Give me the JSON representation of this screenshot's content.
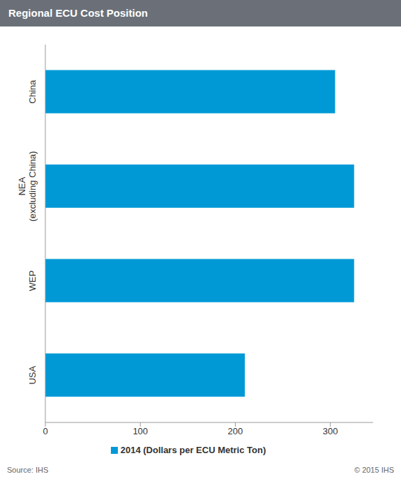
{
  "chart_data": {
    "type": "bar",
    "title": "Regional ECU Cost Position",
    "orientation": "horizontal",
    "categories": [
      "China",
      "NEA (excluding China)",
      "WEP",
      "USA"
    ],
    "series": [
      {
        "name": "2014 (Dollars per ECU Metric Ton)",
        "color": "#0099d6",
        "values": [
          305,
          325,
          325,
          210
        ]
      }
    ],
    "xlim": [
      0,
      345
    ],
    "xticks": [
      0,
      100,
      200,
      300
    ],
    "grid": false,
    "legend": "bottom",
    "source": "Source: IHS",
    "copyright": "© 2015 IHS"
  }
}
